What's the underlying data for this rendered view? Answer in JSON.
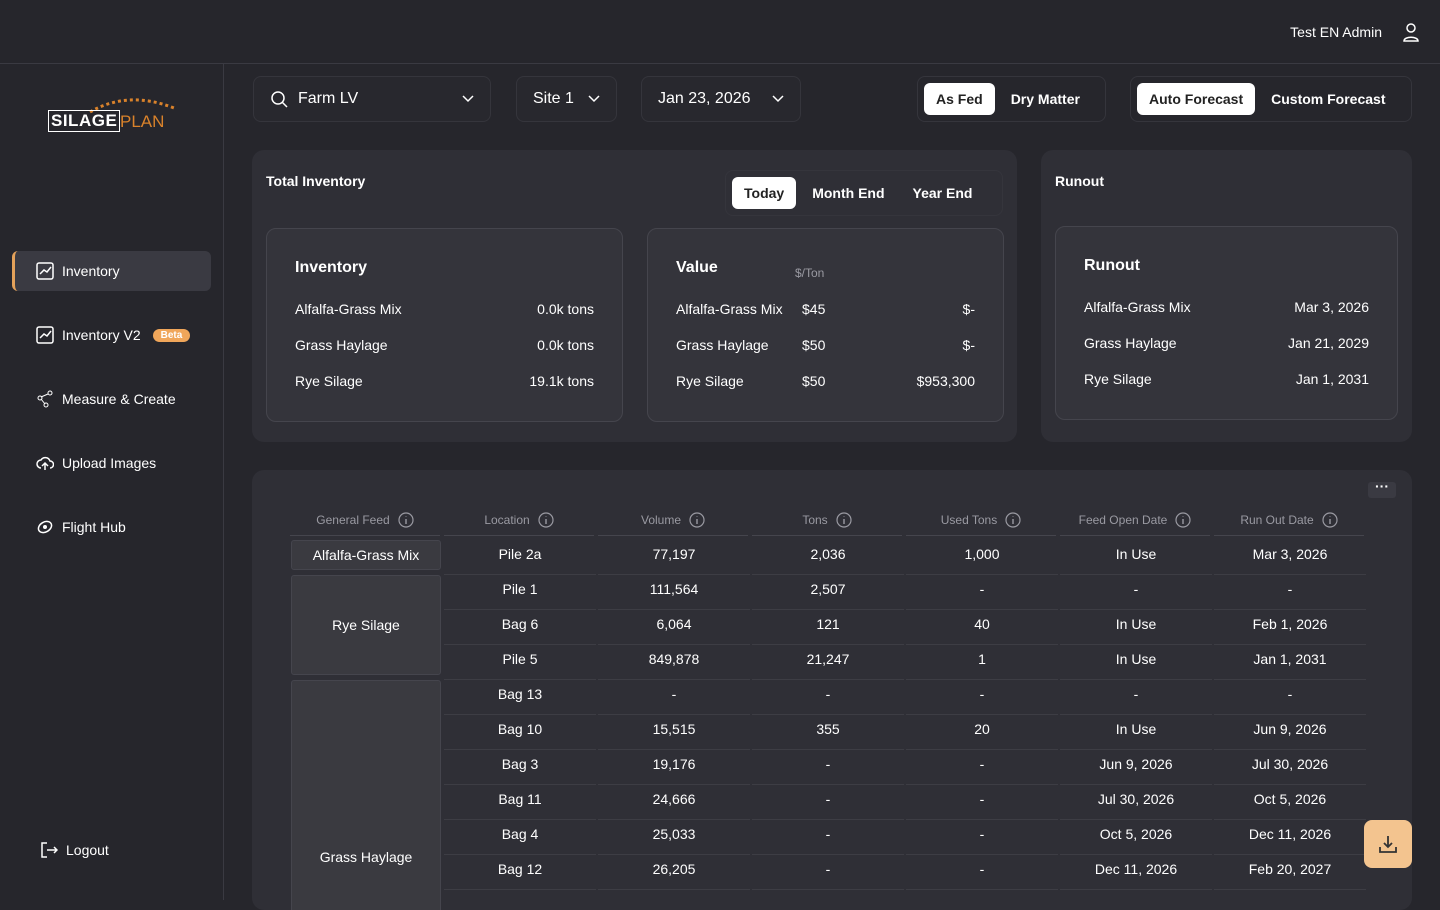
{
  "header": {
    "user": "Test EN Admin"
  },
  "logo": {
    "part1": "SILAGE",
    "part2": "PLAN"
  },
  "nav": [
    {
      "label": "Inventory"
    },
    {
      "label": "Inventory V2",
      "badge": "Beta"
    },
    {
      "label": "Measure & Create"
    },
    {
      "label": "Upload Images"
    },
    {
      "label": "Flight Hub"
    }
  ],
  "logout": "Logout",
  "filters": {
    "farm": "Farm LV",
    "site": "Site 1",
    "date": "Jan 23, 2026"
  },
  "basis_toggle": [
    "As Fed",
    "Dry Matter"
  ],
  "forecast_toggle": [
    "Auto Forecast",
    "Custom Forecast"
  ],
  "total_inventory": {
    "title": "Total Inventory",
    "tabs": [
      "Today",
      "Month End",
      "Year End"
    ],
    "inventory_card": {
      "title": "Inventory",
      "rows": [
        [
          "Alfalfa-Grass Mix",
          "0.0k tons"
        ],
        [
          "Grass Haylage",
          "0.0k tons"
        ],
        [
          "Rye Silage",
          "19.1k tons"
        ]
      ]
    },
    "value_card": {
      "title": "Value",
      "unit": "$/Ton",
      "rows": [
        [
          "Alfalfa-Grass Mix",
          "$45",
          "$-"
        ],
        [
          "Grass Haylage",
          "$50",
          "$-"
        ],
        [
          "Rye Silage",
          "$50",
          "$953,300"
        ]
      ]
    }
  },
  "runout": {
    "title": "Runout",
    "card": {
      "title": "Runout",
      "rows": [
        [
          "Alfalfa-Grass Mix",
          "Mar 3, 2026"
        ],
        [
          "Grass Haylage",
          "Jan 21, 2029"
        ],
        [
          "Rye Silage",
          "Jan 1, 2031"
        ]
      ]
    }
  },
  "table": {
    "headers": [
      "General Feed",
      "Location",
      "Volume",
      "Tons",
      "Used Tons",
      "Feed Open Date",
      "Run Out Date"
    ],
    "groups": [
      {
        "feed": "Alfalfa-Grass Mix",
        "rows": [
          [
            "Pile 2a",
            "77,197",
            "2,036",
            "1,000",
            "In Use",
            "Mar 3, 2026"
          ]
        ]
      },
      {
        "feed": "Rye Silage",
        "rows": [
          [
            "Pile 1",
            "111,564",
            "2,507",
            "-",
            "-",
            "-"
          ],
          [
            "Bag 6",
            "6,064",
            "121",
            "40",
            "In Use",
            "Feb 1, 2026"
          ],
          [
            "Pile 5",
            "849,878",
            "21,247",
            "1",
            "In Use",
            "Jan 1, 2031"
          ]
        ]
      },
      {
        "feed": "Grass Haylage",
        "rows": [
          [
            "Bag 13",
            "-",
            "-",
            "-",
            "-",
            "-"
          ],
          [
            "Bag 10",
            "15,515",
            "355",
            "20",
            "In Use",
            "Jun 9, 2026"
          ],
          [
            "Bag 3",
            "19,176",
            "-",
            "-",
            "Jun 9, 2026",
            "Jul 30, 2026"
          ],
          [
            "Bag 11",
            "24,666",
            "-",
            "-",
            "Jul 30, 2026",
            "Oct 5, 2026"
          ],
          [
            "Bag 4",
            "25,033",
            "-",
            "-",
            "Oct 5, 2026",
            "Dec 11, 2026"
          ],
          [
            "Bag 12",
            "26,205",
            "-",
            "-",
            "Dec 11, 2026",
            "Feb 20, 2027"
          ]
        ]
      }
    ]
  }
}
